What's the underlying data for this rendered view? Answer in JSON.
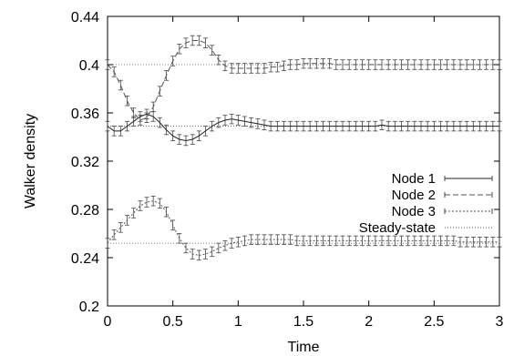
{
  "chart_data": {
    "type": "line",
    "title": "",
    "xlabel": "Time",
    "ylabel": "Walker density",
    "xlim": [
      0,
      3
    ],
    "ylim": [
      0.2,
      0.44
    ],
    "xticks": [
      "0",
      "0.5",
      "1",
      "1.5",
      "2",
      "2.5",
      "3"
    ],
    "xtick_values": [
      0,
      0.5,
      1,
      1.5,
      2,
      2.5,
      3
    ],
    "yticks": [
      "0.2",
      "0.24",
      "0.28",
      "0.32",
      "0.36",
      "0.4",
      "0.44"
    ],
    "ytick_values": [
      0.2,
      0.24,
      0.28,
      0.32,
      0.36,
      0.4,
      0.44
    ],
    "grid": false,
    "legend_position": "right",
    "error_bar_halfwidth": 0.004,
    "x": [
      0,
      0.05,
      0.1,
      0.15,
      0.2,
      0.25,
      0.3,
      0.35,
      0.4,
      0.45,
      0.5,
      0.55,
      0.6,
      0.65,
      0.7,
      0.75,
      0.8,
      0.85,
      0.9,
      0.95,
      1.0,
      1.05,
      1.1,
      1.15,
      1.2,
      1.25,
      1.3,
      1.35,
      1.4,
      1.45,
      1.5,
      1.55,
      1.6,
      1.65,
      1.7,
      1.75,
      1.8,
      1.85,
      1.9,
      1.95,
      2.0,
      2.05,
      2.1,
      2.15,
      2.2,
      2.25,
      2.3,
      2.35,
      2.4,
      2.45,
      2.5,
      2.55,
      2.6,
      2.65,
      2.7,
      2.75,
      2.8,
      2.85,
      2.9,
      2.95,
      3.0
    ],
    "series": [
      {
        "name": "Node 1",
        "dash": "",
        "values": [
          0.349,
          0.345,
          0.345,
          0.349,
          0.353,
          0.357,
          0.359,
          0.357,
          0.352,
          0.346,
          0.341,
          0.338,
          0.337,
          0.338,
          0.341,
          0.345,
          0.349,
          0.352,
          0.354,
          0.355,
          0.354,
          0.353,
          0.352,
          0.351,
          0.35,
          0.349,
          0.349,
          0.349,
          0.349,
          0.349,
          0.349,
          0.349,
          0.349,
          0.349,
          0.349,
          0.349,
          0.349,
          0.349,
          0.349,
          0.349,
          0.349,
          0.349,
          0.35,
          0.349,
          0.349,
          0.349,
          0.349,
          0.349,
          0.349,
          0.349,
          0.349,
          0.349,
          0.349,
          0.349,
          0.349,
          0.349,
          0.349,
          0.349,
          0.349,
          0.349,
          0.349
        ]
      },
      {
        "name": "Node 2",
        "dash": "6 3",
        "values": [
          0.4,
          0.394,
          0.383,
          0.37,
          0.36,
          0.354,
          0.356,
          0.365,
          0.378,
          0.391,
          0.403,
          0.413,
          0.418,
          0.42,
          0.42,
          0.418,
          0.412,
          0.404,
          0.399,
          0.397,
          0.397,
          0.397,
          0.397,
          0.397,
          0.397,
          0.398,
          0.398,
          0.399,
          0.4,
          0.4,
          0.401,
          0.401,
          0.401,
          0.401,
          0.401,
          0.4,
          0.4,
          0.4,
          0.4,
          0.4,
          0.4,
          0.4,
          0.4,
          0.4,
          0.4,
          0.4,
          0.4,
          0.4,
          0.4,
          0.4,
          0.4,
          0.4,
          0.4,
          0.4,
          0.4,
          0.4,
          0.4,
          0.4,
          0.4,
          0.4,
          0.4
        ]
      },
      {
        "name": "Node 3",
        "dash": "2 2",
        "values": [
          0.252,
          0.259,
          0.265,
          0.271,
          0.277,
          0.283,
          0.286,
          0.287,
          0.285,
          0.278,
          0.267,
          0.256,
          0.248,
          0.243,
          0.242,
          0.243,
          0.245,
          0.248,
          0.25,
          0.252,
          0.253,
          0.254,
          0.255,
          0.255,
          0.255,
          0.255,
          0.255,
          0.255,
          0.255,
          0.254,
          0.254,
          0.254,
          0.254,
          0.254,
          0.254,
          0.254,
          0.254,
          0.254,
          0.254,
          0.254,
          0.254,
          0.254,
          0.254,
          0.254,
          0.254,
          0.254,
          0.254,
          0.254,
          0.254,
          0.254,
          0.254,
          0.254,
          0.254,
          0.254,
          0.253,
          0.253,
          0.253,
          0.253,
          0.253,
          0.253,
          0.253
        ]
      },
      {
        "name": "Steady-state",
        "dash": "1 2",
        "steady_values": [
          0.4,
          0.349,
          0.252
        ]
      }
    ]
  }
}
